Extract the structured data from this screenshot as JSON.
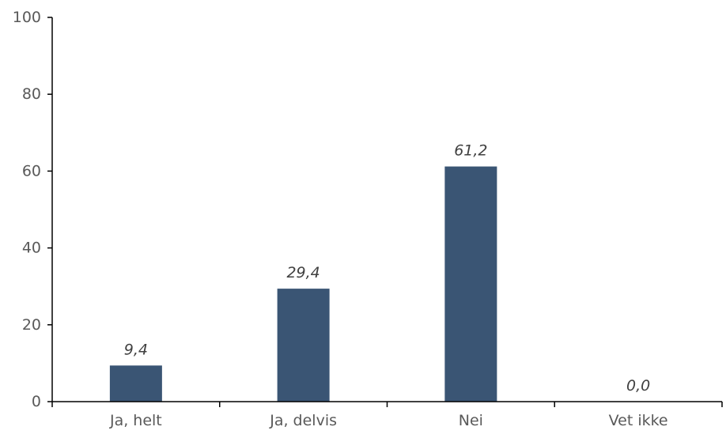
{
  "chart_data": {
    "type": "bar",
    "categories": [
      "Ja, helt",
      "Ja, delvis",
      "Nei",
      "Vet ikke"
    ],
    "values": [
      9.4,
      29.4,
      61.2,
      0.0
    ],
    "value_labels": [
      "9,4",
      "29,4",
      "61,2",
      "0,0"
    ],
    "title": "",
    "xlabel": "",
    "ylabel": "",
    "ylim": [
      0,
      100
    ],
    "yticks": [
      0,
      20,
      40,
      60,
      80,
      100
    ],
    "ytick_labels": [
      "0",
      "20",
      "40",
      "60",
      "80",
      "100"
    ],
    "grid": false,
    "legend": "none",
    "colors": {
      "bar": "#3a5574",
      "axis": "#000000",
      "tick_text": "#595959",
      "data_label_text": "#404040"
    }
  }
}
